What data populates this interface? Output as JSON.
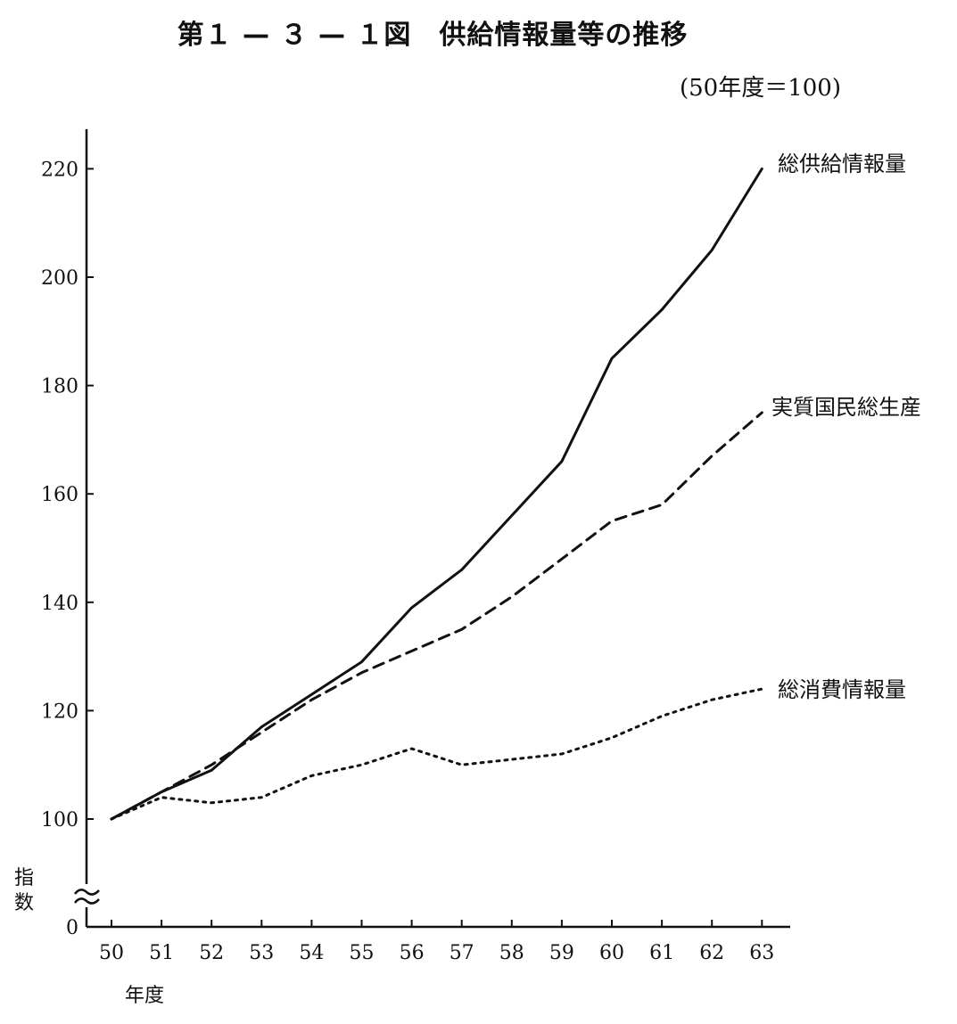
{
  "title": "第１ — ３ — １図　供給情報量等の推移",
  "subtitle": "(50年度＝100)",
  "chart_data": {
    "type": "line",
    "title": "第１ — ３ — １図　供給情報量等の推移",
    "subtitle": "(50年度＝100)",
    "xlabel": "年度",
    "ylabel": "指数",
    "categories": [
      "50",
      "51",
      "52",
      "53",
      "54",
      "55",
      "56",
      "57",
      "58",
      "59",
      "60",
      "61",
      "62",
      "63"
    ],
    "yticks": [
      "0",
      "100",
      "120",
      "140",
      "160",
      "180",
      "200",
      "220"
    ],
    "ylim": [
      100,
      228
    ],
    "y_axis_break": true,
    "grid": false,
    "series": [
      {
        "name": "総供給情報量",
        "style": "solid",
        "values": [
          100,
          105,
          109,
          117,
          123,
          129,
          139,
          146,
          156,
          166,
          185,
          194,
          205,
          220
        ]
      },
      {
        "name": "実質国民総生産",
        "style": "dashed",
        "values": [
          100,
          105,
          110,
          116,
          122,
          127,
          131,
          135,
          141,
          148,
          155,
          158,
          167,
          175
        ]
      },
      {
        "name": "総消費情報量",
        "style": "dotted",
        "values": [
          100,
          104,
          103,
          104,
          108,
          110,
          113,
          110,
          111,
          112,
          115,
          119,
          122,
          124
        ]
      }
    ]
  }
}
